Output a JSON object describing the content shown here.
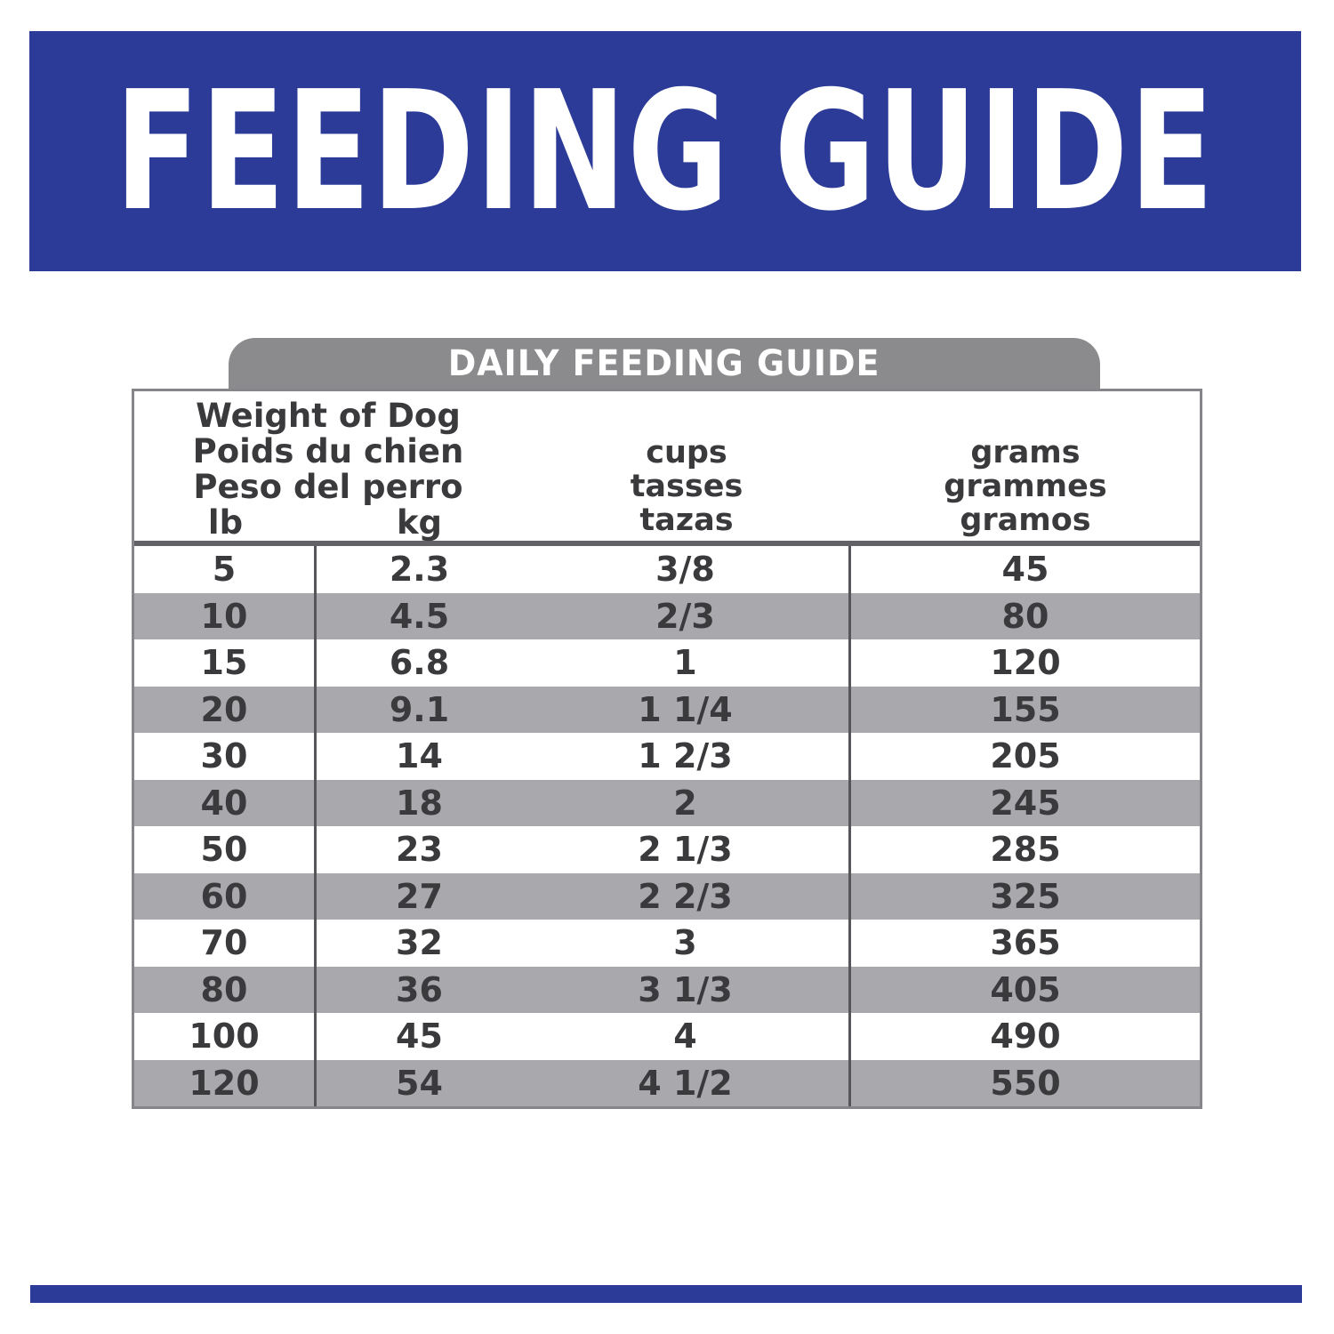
{
  "banner": {
    "title": "FEEDING GUIDE"
  },
  "table": {
    "title": "DAILY FEEDING GUIDE",
    "header": {
      "weight_lines": [
        "Weight of Dog",
        "Poids du chien",
        "Peso del perro"
      ],
      "unit_lb": "lb",
      "unit_kg": "kg",
      "cups_lines": [
        "cups",
        "tasses",
        "tazas"
      ],
      "grams_lines": [
        "grams",
        "grammes",
        "gramos"
      ]
    },
    "rows": [
      {
        "lb": "5",
        "kg": "2.3",
        "cups": "3/8",
        "grams": "45"
      },
      {
        "lb": "10",
        "kg": "4.5",
        "cups": "2/3",
        "grams": "80"
      },
      {
        "lb": "15",
        "kg": "6.8",
        "cups": "1",
        "grams": "120"
      },
      {
        "lb": "20",
        "kg": "9.1",
        "cups": "1 1/4",
        "grams": "155"
      },
      {
        "lb": "30",
        "kg": "14",
        "cups": "1 2/3",
        "grams": "205"
      },
      {
        "lb": "40",
        "kg": "18",
        "cups": "2",
        "grams": "245"
      },
      {
        "lb": "50",
        "kg": "23",
        "cups": "2 1/3",
        "grams": "285"
      },
      {
        "lb": "60",
        "kg": "27",
        "cups": "2 2/3",
        "grams": "325"
      },
      {
        "lb": "70",
        "kg": "32",
        "cups": "3",
        "grams": "365"
      },
      {
        "lb": "80",
        "kg": "36",
        "cups": "3 1/3",
        "grams": "405"
      },
      {
        "lb": "100",
        "kg": "45",
        "cups": "4",
        "grams": "490"
      },
      {
        "lb": "120",
        "kg": "54",
        "cups": "4 1/2",
        "grams": "550"
      }
    ],
    "colors": {
      "accent_blue": "#2B3B97",
      "pill_gray": "#8B8B8E",
      "row_alt_gray": "#A9A9AD",
      "border_gray": "#85858A",
      "text_dark": "#3A3A3D"
    }
  },
  "chart_data": {
    "type": "table",
    "title": "DAILY FEEDING GUIDE",
    "columns": [
      "Weight of Dog (lb)",
      "Weight of Dog (kg)",
      "cups / tasses / tazas",
      "grams / grammes / gramos"
    ],
    "rows": [
      [
        "5",
        "2.3",
        "3/8",
        "45"
      ],
      [
        "10",
        "4.5",
        "2/3",
        "80"
      ],
      [
        "15",
        "6.8",
        "1",
        "120"
      ],
      [
        "20",
        "9.1",
        "1 1/4",
        "155"
      ],
      [
        "30",
        "14",
        "1 2/3",
        "205"
      ],
      [
        "40",
        "18",
        "2",
        "245"
      ],
      [
        "50",
        "23",
        "2 1/3",
        "285"
      ],
      [
        "60",
        "27",
        "2 2/3",
        "325"
      ],
      [
        "70",
        "32",
        "3",
        "365"
      ],
      [
        "80",
        "36",
        "3 1/3",
        "405"
      ],
      [
        "100",
        "45",
        "4",
        "490"
      ],
      [
        "120",
        "54",
        "4 1/2",
        "550"
      ]
    ]
  }
}
